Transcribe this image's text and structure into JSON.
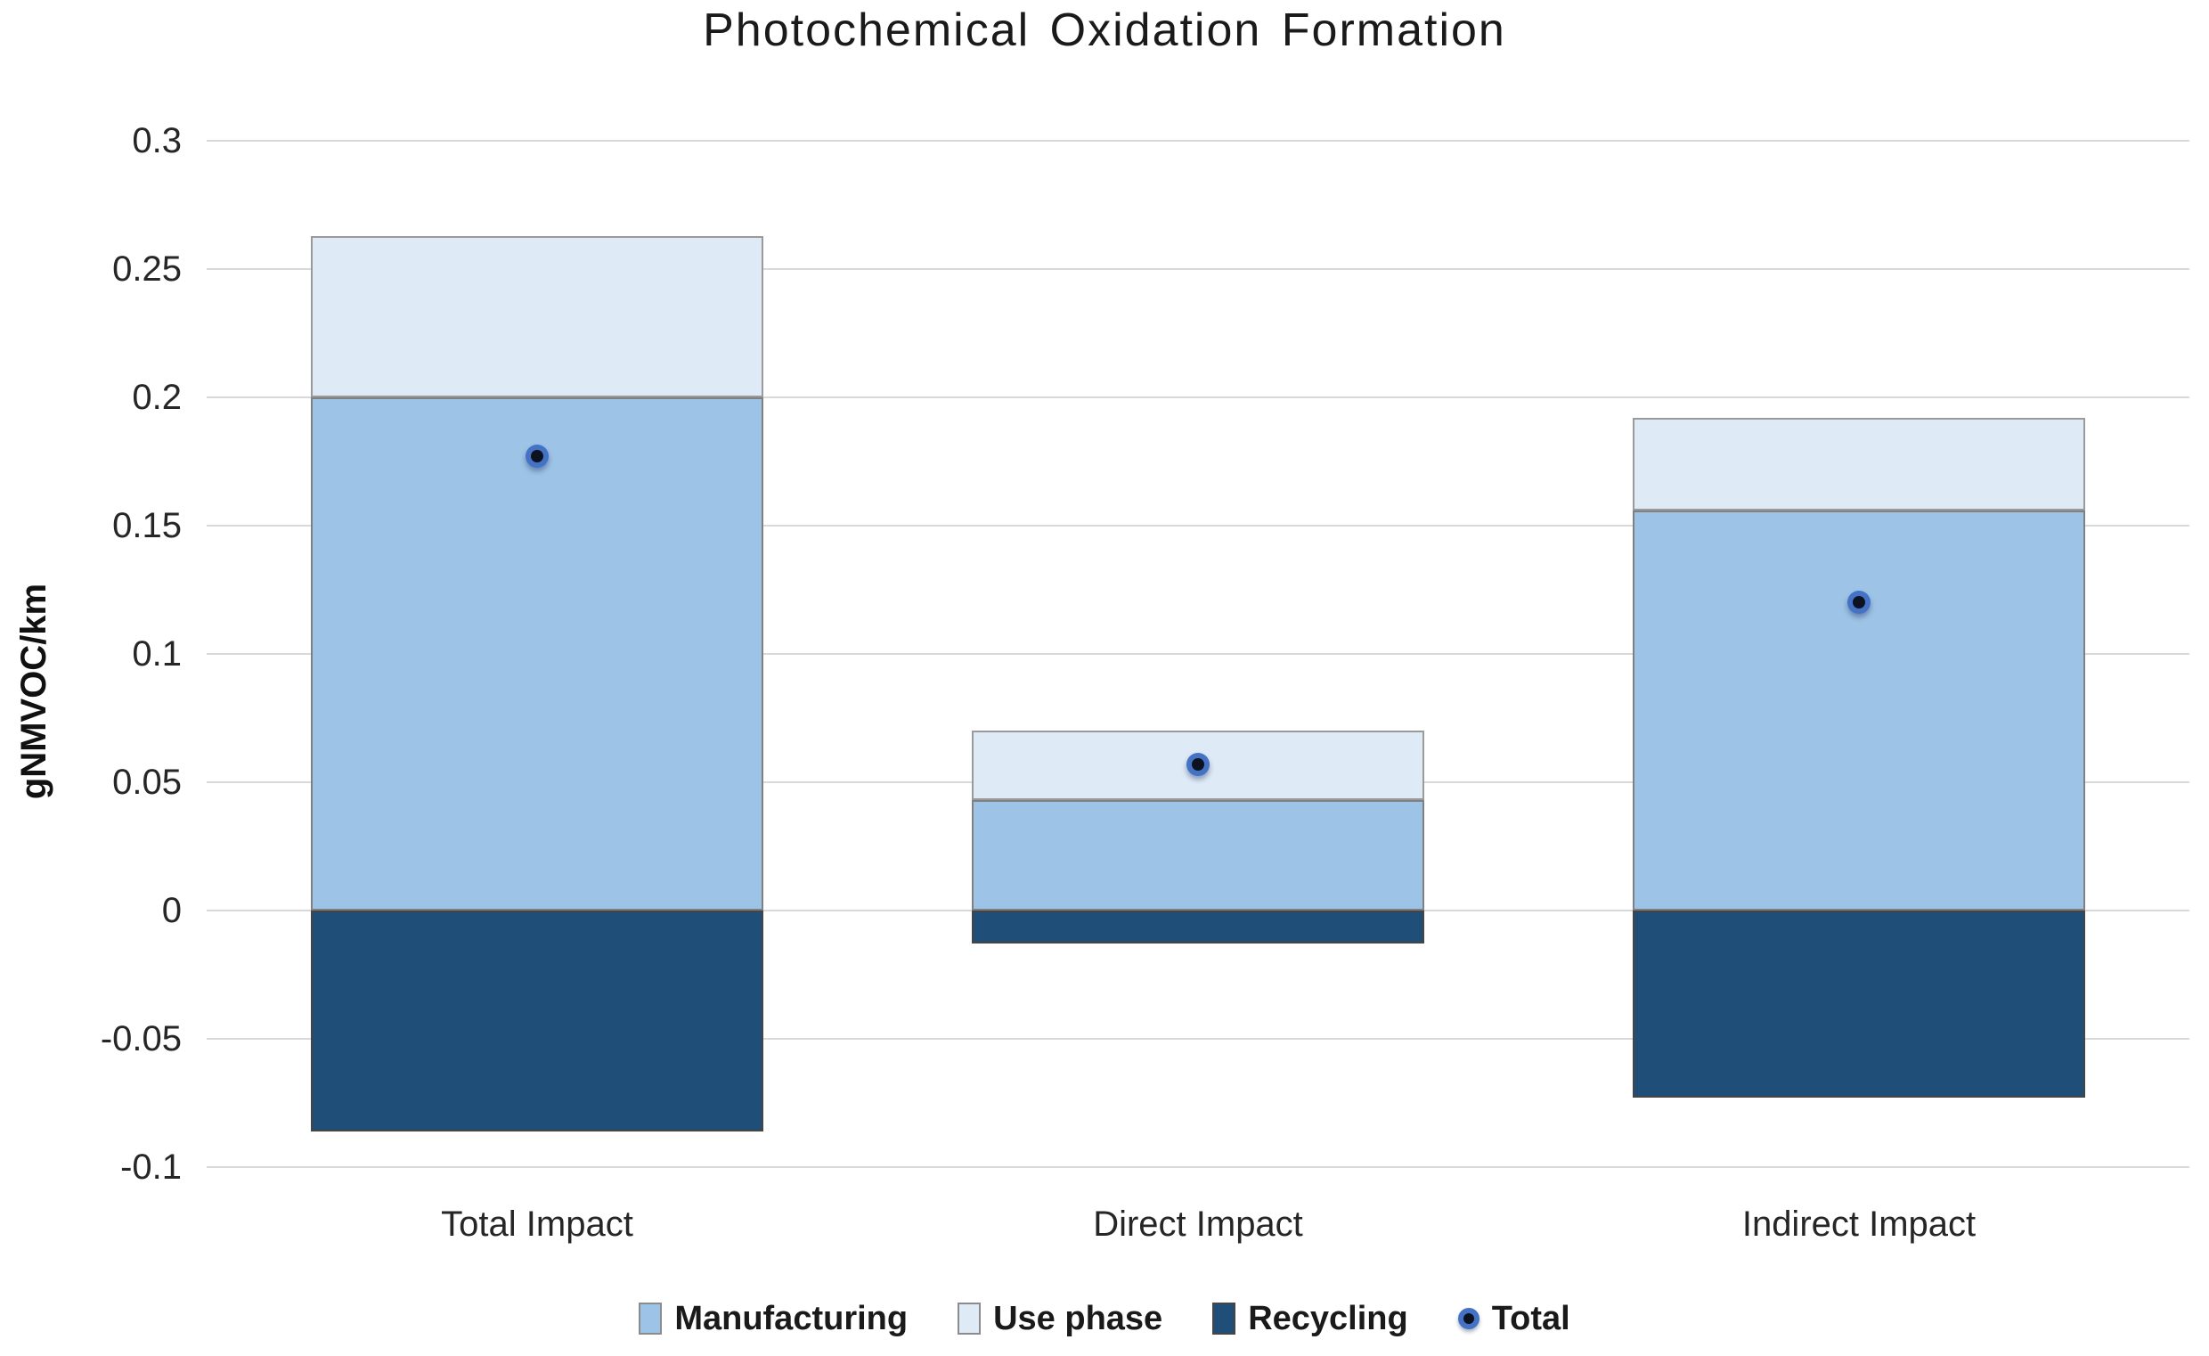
{
  "title": "Photochemical Oxidation Formation",
  "chart_data": {
    "type": "bar",
    "stacked": true,
    "title": "Photochemical Oxidation Formation",
    "xlabel": "",
    "ylabel": "gNMVOC/km",
    "categories": [
      "Total Impact",
      "Direct Impact",
      "Indirect Impact"
    ],
    "series": [
      {
        "name": "Manufacturing",
        "render": "bar",
        "color": "#9DC3E6",
        "border": "#808080",
        "values": [
          0.2,
          0.043,
          0.156
        ]
      },
      {
        "name": "Use phase",
        "render": "bar",
        "color": "#DEEAF6",
        "border": "#9a9a9a",
        "values": [
          0.063,
          0.027,
          0.036
        ]
      },
      {
        "name": "Recycling",
        "render": "bar",
        "color": "#1F4E79",
        "border": "#454545",
        "values": [
          -0.086,
          -0.013,
          -0.073
        ]
      },
      {
        "name": "Total",
        "render": "point",
        "color": "#4472C4",
        "core_color": "#0c1220",
        "values": [
          0.177,
          0.057,
          0.12
        ]
      }
    ],
    "ylim": [
      -0.1,
      0.3
    ],
    "ytick_step": 0.05,
    "ytick_labels": [
      "0.3",
      "0.25",
      "0.2",
      "0.15",
      "0.1",
      "0.05",
      "0",
      "-0.05",
      "-0.1"
    ],
    "grid": true,
    "gridline_color": "#d9d9d9",
    "legend_position": "bottom"
  },
  "legend": {
    "items": [
      "Manufacturing",
      "Use phase",
      "Recycling",
      "Total"
    ]
  }
}
